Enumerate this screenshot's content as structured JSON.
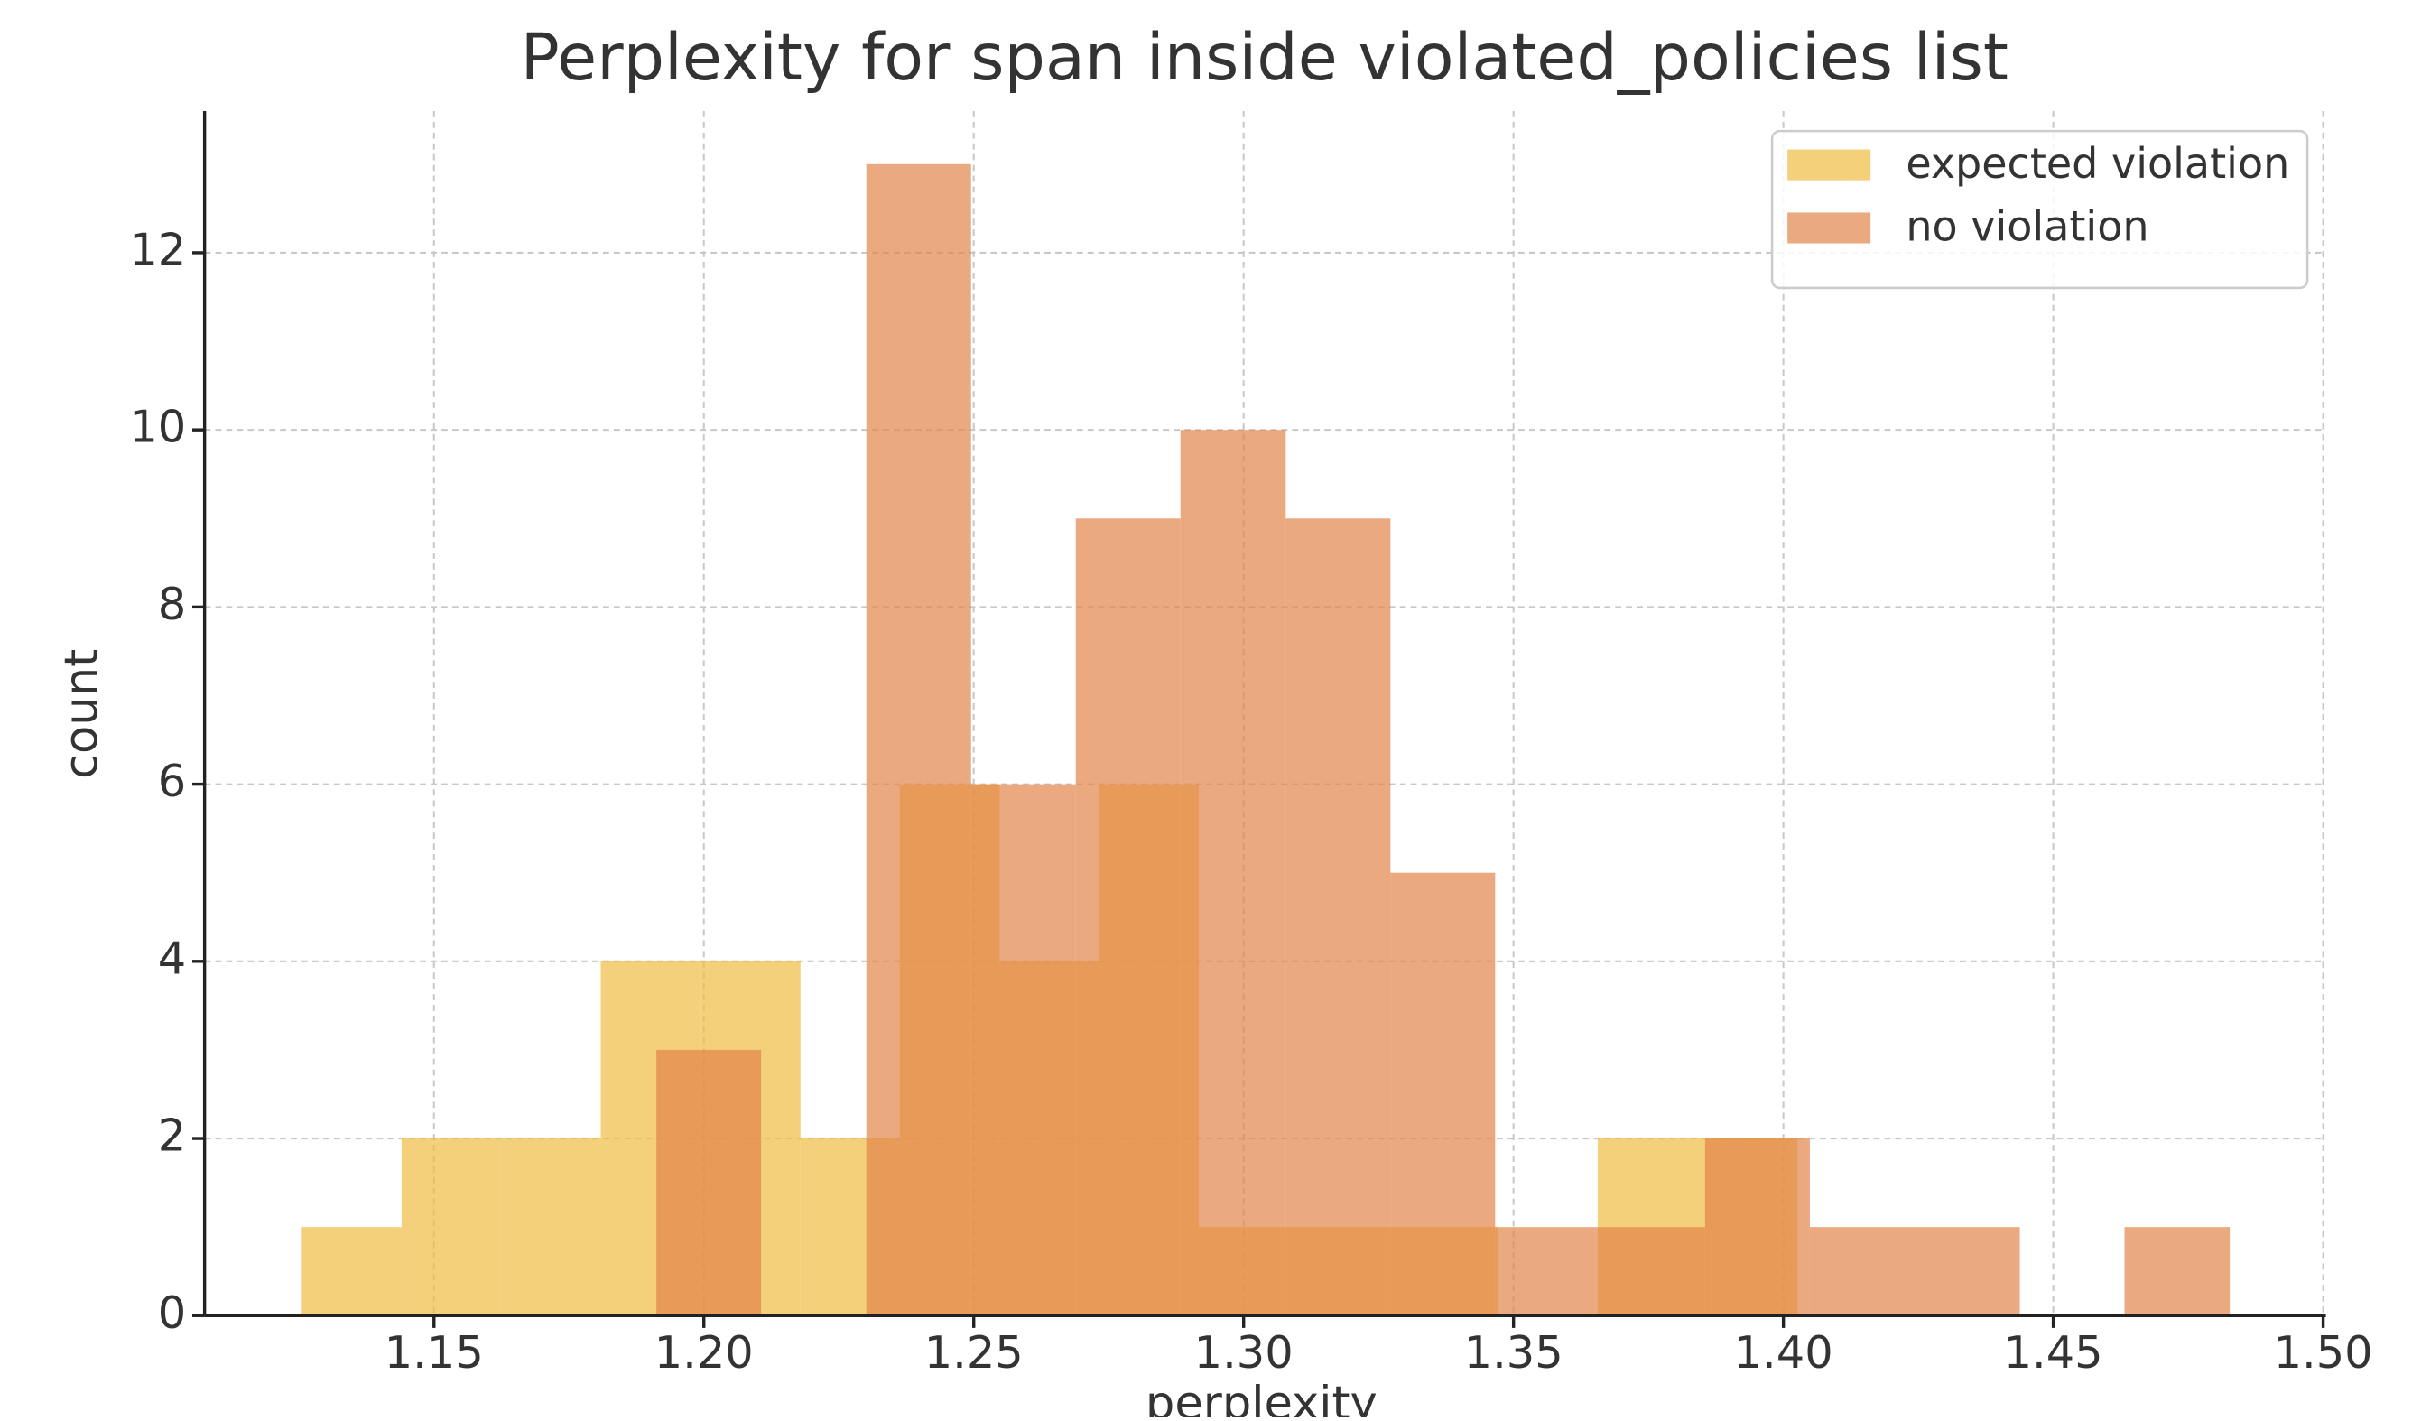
{
  "chart_data": {
    "type": "histogram",
    "title": "Perplexity for span inside violated_policies list",
    "x_label": "perplexity",
    "y_label": "count",
    "xlim": [
      1.1075,
      1.5005
    ],
    "ylim": [
      0,
      13.6
    ],
    "xticks": [
      {
        "value": 1.15,
        "label": "1.15"
      },
      {
        "value": 1.2,
        "label": "1.20"
      },
      {
        "value": 1.25,
        "label": "1.25"
      },
      {
        "value": 1.3,
        "label": "1.30"
      },
      {
        "value": 1.35,
        "label": "1.35"
      },
      {
        "value": 1.4,
        "label": "1.40"
      },
      {
        "value": 1.45,
        "label": "1.45"
      },
      {
        "value": 1.5,
        "label": "1.50"
      }
    ],
    "yticks": [
      0,
      2,
      4,
      6,
      8,
      10,
      12
    ],
    "grid": true,
    "legend": "upper right",
    "series": [
      {
        "name": "expected violation",
        "color": "#f0bc42",
        "bins": [
          1.1255,
          1.144,
          1.1624,
          1.1809,
          1.1994,
          1.2179,
          1.2363,
          1.2548,
          1.2733,
          1.2917,
          1.3102,
          1.3287,
          1.3472,
          1.3656,
          1.3841,
          1.4026
        ],
        "values": [
          1,
          2,
          2,
          4,
          4,
          2,
          6,
          4,
          6,
          1,
          1,
          1,
          0,
          2,
          2
        ]
      },
      {
        "name": "no violation",
        "color": "#e2844a",
        "bins": [
          1.1912,
          1.2106,
          1.2301,
          1.2495,
          1.2689,
          1.2883,
          1.3078,
          1.3272,
          1.3466,
          1.3661,
          1.3855,
          1.4049,
          1.4244,
          1.4438,
          1.4632,
          1.4827
        ],
        "values": [
          3,
          0,
          13,
          6,
          9,
          10,
          9,
          5,
          1,
          1,
          2,
          1,
          1,
          0,
          1
        ]
      }
    ]
  }
}
